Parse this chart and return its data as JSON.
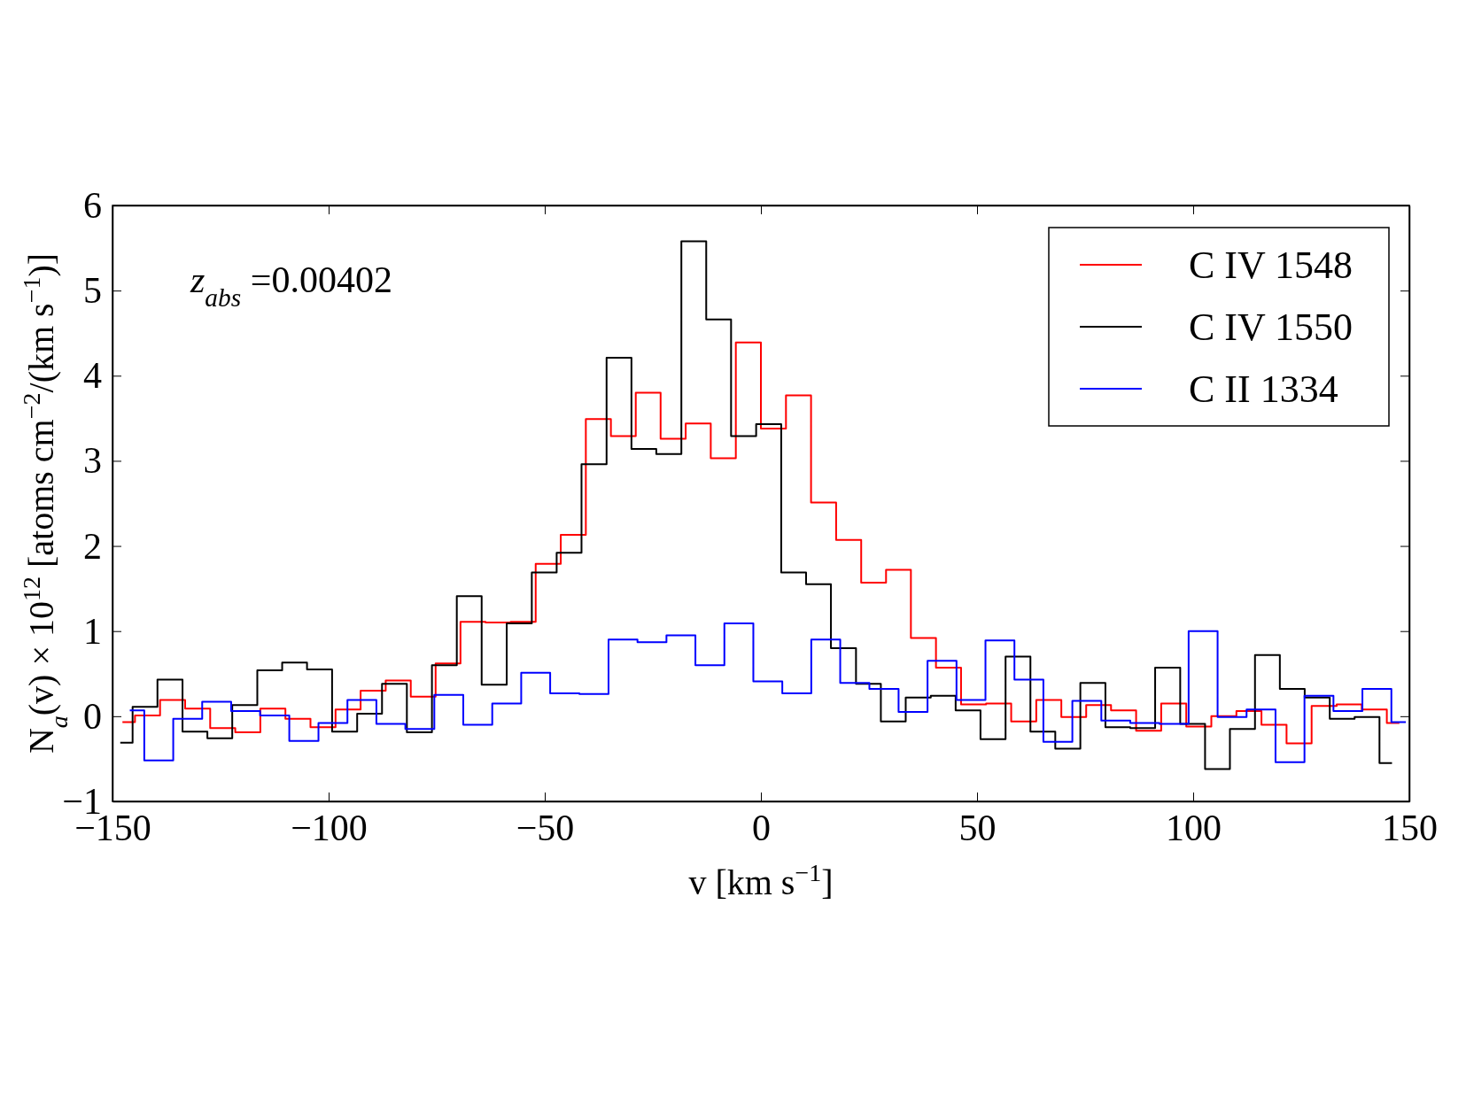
{
  "chart_data": {
    "type": "step",
    "xlabel": "v [km s$^{−1}$]",
    "ylabel": "N$_{a}$(v) × 10$^{12}$ [atoms cm$^{−2}$/(km s$^{−1}$)]",
    "annotations": [
      "z$_{abs}$ =0.00402"
    ],
    "xlim": [
      -150,
      150
    ],
    "xticks": [
      {
        "value": -150,
        "label": "−150"
      },
      {
        "value": -100,
        "label": "−100"
      },
      {
        "value": -50,
        "label": "−50"
      },
      0,
      50,
      100,
      150
    ],
    "ylim": [
      -1,
      6
    ],
    "yticks": [
      {
        "value": -1,
        "label": "−1"
      },
      0,
      1,
      2,
      3,
      4,
      5,
      6
    ],
    "legend": "top right",
    "grid": false,
    "series": [
      {
        "name": "C IV 1548",
        "color": "#ff0000",
        "x": [
          -147.7,
          -141.9,
          -136.1,
          -130.3,
          -124.5,
          -118.7,
          -112.9,
          -107.1,
          -101.3,
          -95.5,
          -89.7,
          -83.9,
          -78.1,
          -72.4,
          -66.6,
          -60.8,
          -55.0,
          -49.2,
          -43.4,
          -37.6,
          -31.8,
          -26.1,
          -20.3,
          -14.5,
          -8.7,
          -2.9,
          2.9,
          8.7,
          14.5,
          20.3,
          26.1,
          31.8,
          37.6,
          43.4,
          49.2,
          55.0,
          60.8,
          66.6,
          72.4,
          78.1,
          83.9,
          89.7,
          95.5,
          101.3,
          107.1,
          112.9,
          118.7,
          124.5,
          130.3,
          136.1,
          141.9,
          147.7
        ],
        "values": [
          -0.07,
          0.01,
          0.19,
          0.09,
          -0.14,
          -0.19,
          0.09,
          -0.03,
          -0.13,
          0.08,
          0.3,
          0.42,
          0.23,
          0.62,
          1.11,
          1.1,
          1.11,
          1.79,
          2.13,
          3.49,
          3.29,
          3.8,
          3.26,
          3.44,
          3.03,
          4.39,
          3.38,
          3.77,
          2.51,
          2.07,
          1.57,
          1.72,
          0.92,
          0.57,
          0.14,
          0.15,
          -0.06,
          0.19,
          -0.01,
          0.13,
          0.07,
          -0.17,
          0.15,
          -0.12,
          0.0,
          0.06,
          -0.1,
          -0.32,
          0.12,
          0.14,
          0.08,
          -0.08
        ]
      },
      {
        "name": "C IV 1550",
        "color": "#000000",
        "x": [
          -148.2,
          -142.5,
          -136.7,
          -130.9,
          -125.2,
          -119.4,
          -113.6,
          -107.9,
          -102.1,
          -96.3,
          -90.5,
          -84.8,
          -79.0,
          -73.2,
          -67.5,
          -61.7,
          -55.9,
          -50.1,
          -44.4,
          -38.6,
          -32.8,
          -27.1,
          -21.3,
          -15.5,
          -9.8,
          -4.0,
          1.8,
          7.6,
          13.3,
          19.1,
          24.9,
          30.6,
          36.4,
          42.2,
          47.9,
          53.7,
          59.5,
          65.2,
          71.0,
          76.8,
          82.6,
          88.3,
          94.1,
          99.9,
          105.6,
          111.4,
          117.2,
          122.9,
          128.7,
          134.5,
          140.2,
          146.0
        ],
        "values": [
          -0.31,
          0.11,
          0.43,
          -0.18,
          -0.26,
          0.13,
          0.54,
          0.63,
          0.55,
          -0.18,
          0.03,
          0.38,
          -0.19,
          0.6,
          1.41,
          0.37,
          1.09,
          1.69,
          1.92,
          2.96,
          4.21,
          3.14,
          3.08,
          5.58,
          4.66,
          3.29,
          3.43,
          1.69,
          1.55,
          0.8,
          0.38,
          -0.06,
          0.22,
          0.24,
          0.07,
          -0.27,
          0.7,
          -0.18,
          -0.38,
          0.39,
          -0.13,
          -0.14,
          0.57,
          -0.09,
          -0.62,
          -0.15,
          0.72,
          0.32,
          0.22,
          -0.03,
          -0.01,
          -0.55
        ]
      },
      {
        "name": "C II 1334",
        "color": "#0000ff",
        "x": [
          -146.0,
          -139.3,
          -132.6,
          -125.9,
          -119.2,
          -112.5,
          -105.7,
          -99.0,
          -92.3,
          -85.6,
          -78.9,
          -72.2,
          -65.5,
          -58.8,
          -52.1,
          -45.4,
          -38.6,
          -31.9,
          -25.2,
          -18.5,
          -11.8,
          -5.1,
          1.6,
          8.3,
          15.0,
          21.7,
          28.5,
          35.2,
          41.9,
          48.6,
          55.3,
          62.0,
          68.7,
          75.4,
          82.1,
          88.8,
          95.6,
          102.3,
          109.0,
          115.7,
          122.4,
          129.1,
          135.8,
          142.5,
          149.2
        ],
        "values": [
          0.07,
          -0.52,
          -0.03,
          0.17,
          0.06,
          0.01,
          -0.29,
          -0.08,
          0.19,
          -0.09,
          -0.15,
          0.25,
          -0.1,
          0.15,
          0.51,
          0.27,
          0.26,
          0.9,
          0.87,
          0.95,
          0.6,
          1.09,
          0.41,
          0.27,
          0.9,
          0.39,
          0.32,
          0.05,
          0.65,
          0.19,
          0.89,
          0.43,
          -0.3,
          0.18,
          -0.05,
          -0.08,
          -0.09,
          1.0,
          -0.01,
          0.08,
          -0.54,
          0.24,
          0.06,
          0.32,
          -0.07
        ]
      }
    ]
  }
}
